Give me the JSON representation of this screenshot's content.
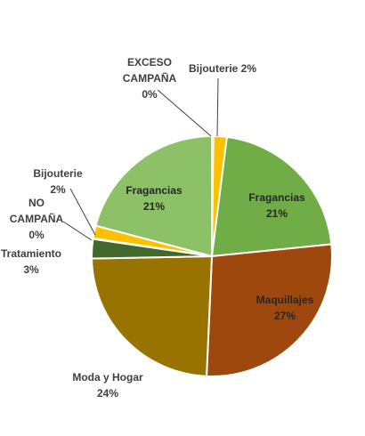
{
  "chart_data": {
    "type": "pie",
    "title": "",
    "legend": "none",
    "slices": [
      {
        "name": "EXCESO CAMPAÑA",
        "label_lines": [
          "EXCESO",
          "CAMPAÑA"
        ],
        "percent_label": "0%",
        "value": 0.2,
        "color": "#ED7D31"
      },
      {
        "name": "Bijouterie",
        "label_lines": [
          "Bijouterie 2%"
        ],
        "percent_label": "2%",
        "value": 1.8,
        "color": "#FFC000"
      },
      {
        "name": "Fragancias",
        "label_lines": [
          "Fragancias"
        ],
        "percent_label": "21%",
        "value": 21.4,
        "color": "#70AD47"
      },
      {
        "name": "Maquillajes",
        "label_lines": [
          "Maquillajes"
        ],
        "percent_label": "27%",
        "value": 27.3,
        "color": "#9E480E"
      },
      {
        "name": "Moda y Hogar",
        "label_lines": [
          "Moda y Hogar"
        ],
        "percent_label": "24%",
        "value": 24.0,
        "color": "#997300"
      },
      {
        "name": "Tratamiento",
        "label_lines": [
          "Tratamiento"
        ],
        "percent_label": "3%",
        "value": 2.6,
        "color": "#43682B"
      },
      {
        "name": "NO CAMPAÑA",
        "label_lines": [
          "NO",
          "CAMPAÑA"
        ],
        "percent_label": "0%",
        "value": 0.1,
        "color": "#A5A5A5"
      },
      {
        "name": "Bijouterie",
        "label_lines": [
          "Bijouterie"
        ],
        "percent_label": "2%",
        "value": 1.7,
        "color": "#FFC000"
      },
      {
        "name": "Fragancias",
        "label_lines": [
          "Fragancias"
        ],
        "percent_label": "21%",
        "value": 20.9,
        "color": "#8CC168"
      }
    ]
  }
}
